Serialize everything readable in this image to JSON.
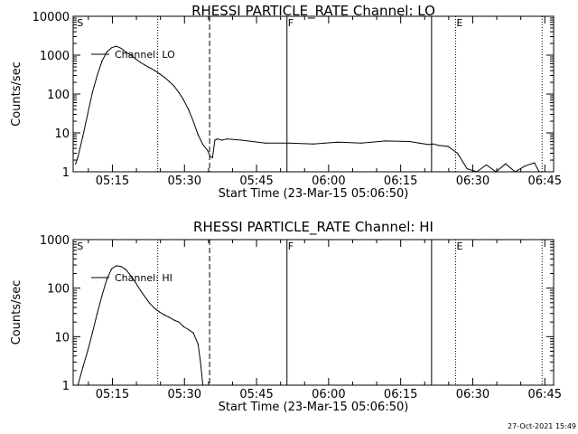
{
  "chart_data": [
    {
      "type": "line",
      "title": "RHESSI PARTICLE_RATE Channel: LO",
      "xlabel": "Start Time (23-Mar-15 05:06:50)",
      "ylabel": "Counts/sec",
      "yscale": "log",
      "ylim": [
        1,
        10000
      ],
      "xlim_minutes": [
        0,
        100
      ],
      "x_ticks": [
        {
          "t": 8.17,
          "label": "05:15"
        },
        {
          "t": 23.17,
          "label": "05:30"
        },
        {
          "t": 38.17,
          "label": "05:45"
        },
        {
          "t": 53.17,
          "label": "06:00"
        },
        {
          "t": 68.17,
          "label": "06:15"
        },
        {
          "t": 83.17,
          "label": "06:30"
        },
        {
          "t": 98.17,
          "label": "06:45"
        }
      ],
      "y_ticks": [
        {
          "v": 1,
          "label": "1"
        },
        {
          "v": 10,
          "label": "10"
        },
        {
          "v": 100,
          "label": "100"
        },
        {
          "v": 1000,
          "label": "1000"
        },
        {
          "v": 10000,
          "label": "10000"
        }
      ],
      "legend": "Channel: LO",
      "legend_position": "top-left",
      "markers": [
        {
          "t": 0.6,
          "style": "text",
          "label": "S"
        },
        {
          "t": 17.6,
          "style": "dotted",
          "label": ""
        },
        {
          "t": 28.4,
          "style": "dashed",
          "label": ""
        },
        {
          "t": 44.5,
          "style": "solid",
          "label": "F"
        },
        {
          "t": 74.6,
          "style": "solid",
          "label": ""
        },
        {
          "t": 79.6,
          "style": "dotted",
          "label": "E"
        },
        {
          "t": 97.6,
          "style": "dotted",
          "label": ""
        }
      ],
      "series": [
        {
          "name": "Channel: LO",
          "x": [
            0.5,
            1,
            2,
            3,
            4,
            5,
            6,
            7,
            8,
            9,
            10,
            11,
            12,
            13,
            14,
            15,
            16,
            17,
            18,
            19,
            20,
            21,
            22,
            23,
            24,
            25,
            26,
            27,
            28,
            28.5,
            29,
            29.5,
            30,
            31,
            32,
            35,
            40,
            45,
            50,
            55,
            60,
            65,
            70,
            72,
            74,
            75,
            76,
            78,
            80,
            82,
            84,
            86,
            88,
            90,
            92,
            94,
            96,
            97
          ],
          "y": [
            1.6,
            2.4,
            8,
            30,
            110,
            300,
            700,
            1200,
            1550,
            1700,
            1500,
            1200,
            1000,
            800,
            650,
            550,
            470,
            400,
            330,
            270,
            210,
            160,
            110,
            70,
            40,
            20,
            9,
            5,
            3.5,
            2.5,
            2.3,
            6.5,
            7,
            6.5,
            7,
            6.5,
            5.5,
            5.5,
            5.2,
            5.8,
            5.5,
            6.2,
            6,
            5.5,
            5,
            5.2,
            4.8,
            4.5,
            3,
            1.2,
            1,
            1.5,
            1,
            1.6,
            1,
            1.4,
            1.7,
            1
          ]
        }
      ]
    },
    {
      "type": "line",
      "title": "RHESSI PARTICLE_RATE Channel: HI",
      "xlabel": "Start Time (23-Mar-15 05:06:50)",
      "ylabel": "Counts/sec",
      "yscale": "log",
      "ylim": [
        1,
        1000
      ],
      "xlim_minutes": [
        0,
        100
      ],
      "x_ticks": [
        {
          "t": 8.17,
          "label": "05:15"
        },
        {
          "t": 23.17,
          "label": "05:30"
        },
        {
          "t": 38.17,
          "label": "05:45"
        },
        {
          "t": 53.17,
          "label": "06:00"
        },
        {
          "t": 68.17,
          "label": "06:15"
        },
        {
          "t": 83.17,
          "label": "06:30"
        },
        {
          "t": 98.17,
          "label": "06:45"
        }
      ],
      "y_ticks": [
        {
          "v": 1,
          "label": "1"
        },
        {
          "v": 10,
          "label": "10"
        },
        {
          "v": 100,
          "label": "100"
        },
        {
          "v": 1000,
          "label": "1000"
        }
      ],
      "legend": "Channel: HI",
      "legend_position": "top-left",
      "markers": [
        {
          "t": 0.6,
          "style": "text",
          "label": "S"
        },
        {
          "t": 17.6,
          "style": "dotted",
          "label": ""
        },
        {
          "t": 28.4,
          "style": "dashed",
          "label": ""
        },
        {
          "t": 44.5,
          "style": "solid",
          "label": "F"
        },
        {
          "t": 74.6,
          "style": "solid",
          "label": ""
        },
        {
          "t": 79.6,
          "style": "dotted",
          "label": "E"
        },
        {
          "t": 97.6,
          "style": "dotted",
          "label": ""
        }
      ],
      "series": [
        {
          "name": "Channel: HI",
          "x": [
            1,
            2,
            3,
            4,
            5,
            6,
            7,
            8,
            9,
            10,
            11,
            12,
            13,
            14,
            15,
            16,
            17,
            18,
            19,
            20,
            21,
            22,
            23,
            24,
            25,
            26,
            26.5,
            27
          ],
          "y": [
            1,
            2.3,
            5,
            12,
            30,
            70,
            150,
            250,
            290,
            280,
            240,
            180,
            130,
            90,
            65,
            48,
            38,
            32,
            28,
            25,
            22,
            20,
            16,
            14,
            12,
            7,
            3,
            1
          ]
        }
      ]
    }
  ],
  "footer": {
    "timestamp": "27-Oct-2021 15:49"
  }
}
